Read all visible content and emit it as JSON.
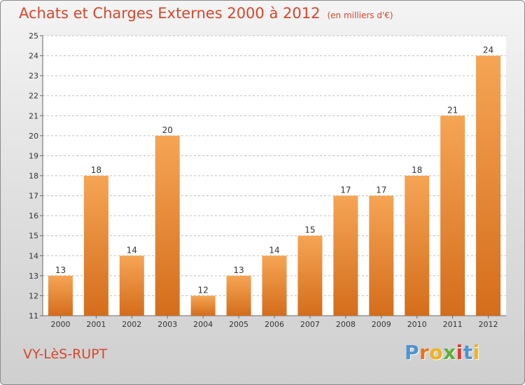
{
  "header": {
    "title": "Achats et Charges Externes 2000 à 2012",
    "unit": "(en milliers d'€)"
  },
  "footer": {
    "place": "VY-LèS-RUPT",
    "logo_letters": [
      "P",
      "r",
      "o",
      "x",
      "i",
      "t",
      "i"
    ]
  },
  "colors": {
    "title": "#d4472c",
    "bar_top": "#f5a555",
    "bar_bottom": "#d46d1b",
    "logo": [
      "#4f93d1",
      "#e8731d",
      "#f2b118",
      "#5cb035",
      "#e23c2f",
      "#4f93d1",
      "#f2b118"
    ]
  },
  "chart_data": {
    "type": "bar",
    "title": "Achats et Charges Externes 2000 à 2012",
    "categories": [
      "2000",
      "2001",
      "2002",
      "2003",
      "2004",
      "2005",
      "2006",
      "2007",
      "2008",
      "2009",
      "2010",
      "2011",
      "2012"
    ],
    "values": [
      13,
      18,
      14,
      20,
      12,
      13,
      14,
      15,
      17,
      17,
      18,
      21,
      24
    ],
    "ylim": [
      11,
      25
    ],
    "yticks": [
      11,
      12,
      13,
      14,
      15,
      16,
      17,
      18,
      19,
      20,
      21,
      22,
      23,
      24,
      25
    ],
    "xlabel": "",
    "ylabel": "",
    "grid": "y-dashed",
    "legend": "none"
  }
}
